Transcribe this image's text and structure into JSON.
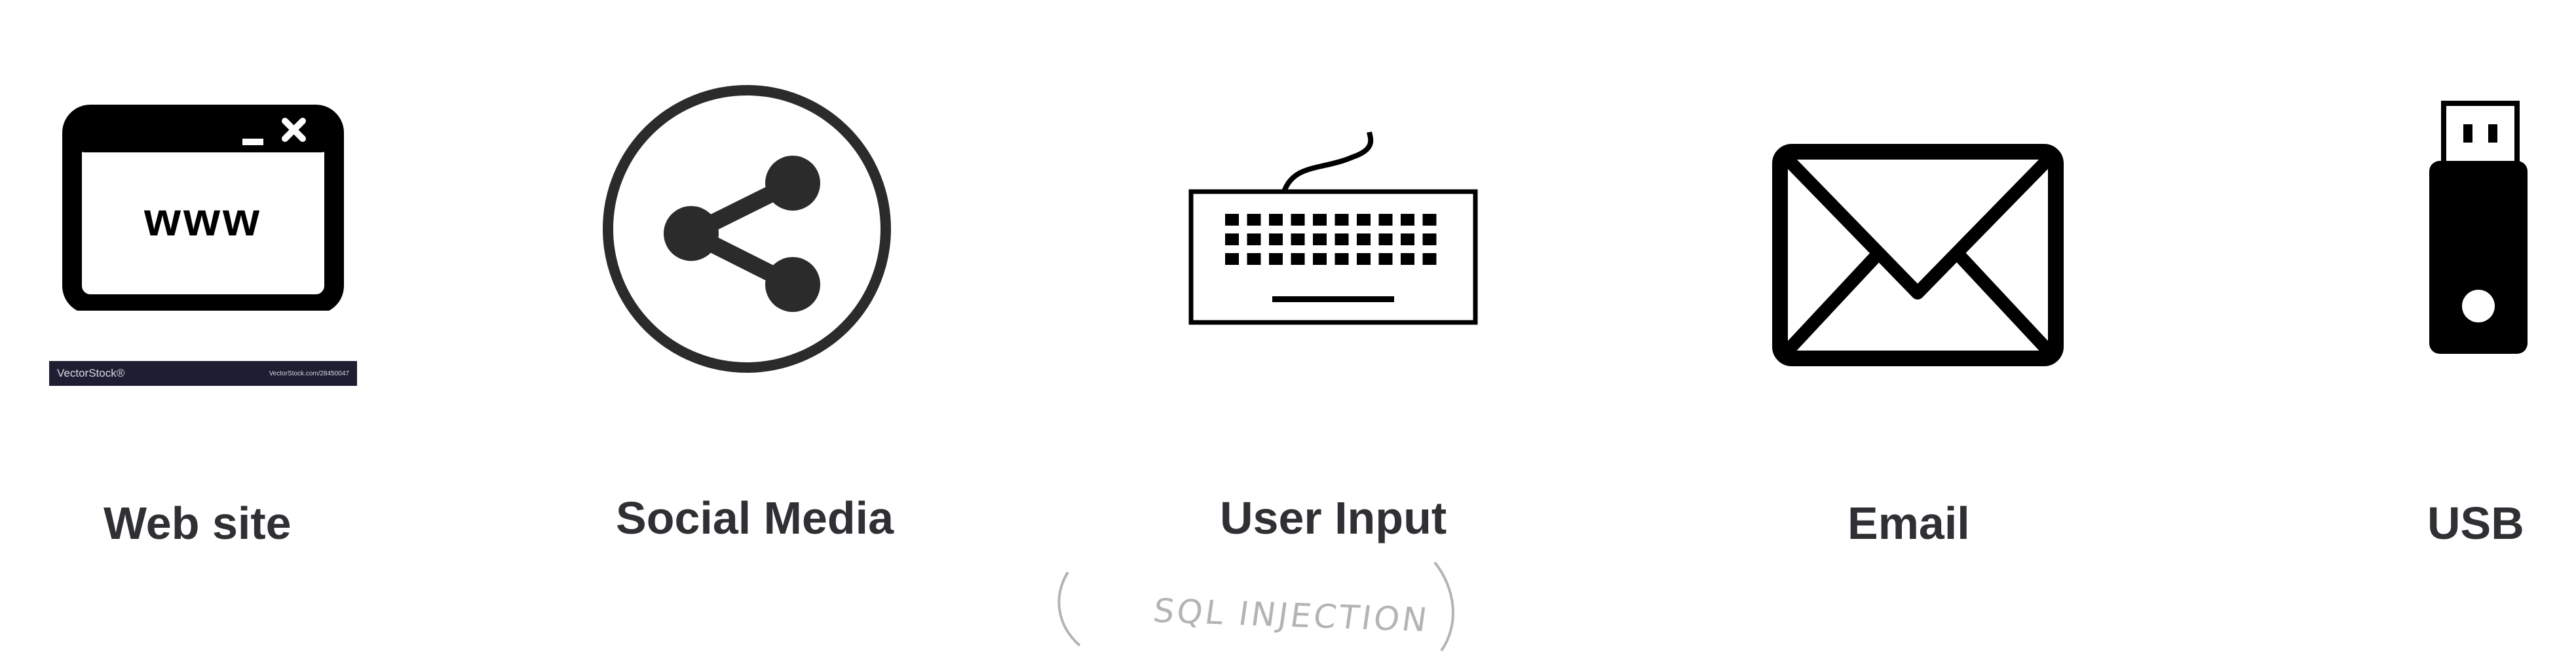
{
  "items": [
    {
      "label": "Web site",
      "icon": "browser-window-icon",
      "icon_text": "www"
    },
    {
      "label": "Social Media",
      "icon": "share-icon"
    },
    {
      "label": "User Input",
      "icon": "keyboard-icon"
    },
    {
      "label": "Email",
      "icon": "envelope-icon"
    },
    {
      "label": "USB",
      "icon": "usb-drive-icon"
    }
  ],
  "watermark": {
    "left": "VectorStock®",
    "right": "VectorStock.com/28450047"
  },
  "annotation": "SQL INJECTION",
  "colors": {
    "icon": "#000000",
    "share_icon": "#2b2b2b",
    "label": "#2f3033",
    "watermark_bar": "#1e1e33",
    "annotation": "#b4b4b4"
  }
}
